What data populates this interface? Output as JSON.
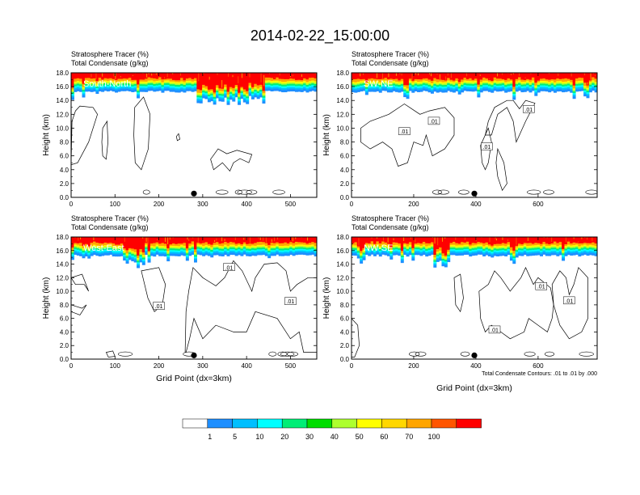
{
  "title": "2014-02-22_15:00:00",
  "colors": {
    "tracer_levels": [
      "#ffffff",
      "#1e8fff",
      "#00bfff",
      "#00ffff",
      "#00ee76",
      "#00dd00",
      "#adff2f",
      "#ffff00",
      "#ffd700",
      "#ffa500",
      "#ff5500",
      "#ff0000"
    ],
    "contour": "#000000"
  },
  "chart_data": [
    {
      "type": "heatmap",
      "panel": "South-North",
      "subtitle_line1": "Stratosphere Tracer   (%)",
      "subtitle_line2": "Total Condensate   (g/kg)",
      "ylabel": "Height (km)",
      "xlabel": "",
      "xlim": [
        0,
        560
      ],
      "ylim": [
        0,
        18
      ],
      "xticks": [
        "0",
        "100",
        "200",
        "300",
        "400",
        "500"
      ],
      "xtick_values": [
        0,
        100,
        200,
        300,
        400,
        500
      ],
      "yticks": [
        "0.0",
        "2.0",
        "4.0",
        "6.0",
        "8.0",
        "10.0",
        "12.0",
        "14.0",
        "16.0",
        "18.0"
      ],
      "tropopause_km": 15.3,
      "marker_x": 280,
      "contour_labels": []
    },
    {
      "type": "heatmap",
      "panel": "SW-NE",
      "subtitle_line1": "Stratosphere Tracer   (%)",
      "subtitle_line2": "Total Condensate   (g/kg)",
      "ylabel": "Height (km)",
      "xlabel": "",
      "xlim": [
        0,
        790
      ],
      "ylim": [
        0,
        18
      ],
      "xticks": [
        "0",
        "200",
        "400",
        "600"
      ],
      "xtick_values": [
        0,
        200,
        400,
        600
      ],
      "yticks": [
        "0.0",
        "2.0",
        "4.0",
        "6.0",
        "8.0",
        "10.0",
        "12.0",
        "14.0",
        "16.0",
        "18.0"
      ],
      "tropopause_km": 15.3,
      "marker_x": 395,
      "contour_labels": [
        {
          "text": ".01",
          "x": 170,
          "y": 9.5
        },
        {
          "text": ".01",
          "x": 265,
          "y": 11.0
        },
        {
          "text": ".01",
          "x": 435,
          "y": 7.3
        },
        {
          "text": ".01",
          "x": 570,
          "y": 12.7
        }
      ]
    },
    {
      "type": "heatmap",
      "panel": "West-East",
      "subtitle_line1": "Stratosphere Tracer   (%)",
      "subtitle_line2": "Total Condensate   (g/kg)",
      "ylabel": "Height (km)",
      "xlabel": "Grid Point (dx=3km)",
      "xlim": [
        0,
        560
      ],
      "ylim": [
        0,
        18
      ],
      "xticks": [
        "0",
        "100",
        "200",
        "300",
        "400",
        "500"
      ],
      "xtick_values": [
        0,
        100,
        200,
        300,
        400,
        500
      ],
      "yticks": [
        "0.0",
        "2.0",
        "4.0",
        "6.0",
        "8.0",
        "10.0",
        "12.0",
        "14.0",
        "16.0",
        "18.0"
      ],
      "tropopause_km": 15.3,
      "marker_x": 280,
      "contour_labels": [
        {
          "text": ".01",
          "x": 200,
          "y": 7.8
        },
        {
          "text": ".01",
          "x": 360,
          "y": 13.5
        },
        {
          "text": ".01",
          "x": 500,
          "y": 8.5
        }
      ]
    },
    {
      "type": "heatmap",
      "panel": "NW-SE",
      "subtitle_line1": "Stratosphere Tracer   (%)",
      "subtitle_line2": "Total Condensate   (g/kg)",
      "ylabel": "Height (km)",
      "xlabel": "Grid Point (dx=3km)",
      "xlim": [
        0,
        790
      ],
      "ylim": [
        0,
        18
      ],
      "xticks": [
        "0",
        "200",
        "400",
        "600"
      ],
      "xtick_values": [
        0,
        200,
        400,
        600
      ],
      "yticks": [
        "0.0",
        "2.0",
        "4.0",
        "6.0",
        "8.0",
        "10.0",
        "12.0",
        "14.0",
        "16.0",
        "18.0"
      ],
      "tropopause_km": 15.3,
      "marker_x": 395,
      "contour_labels": [
        {
          "text": ".01",
          "x": 610,
          "y": 10.7
        },
        {
          "text": ".01",
          "x": 700,
          "y": 8.6
        },
        {
          "text": ".01",
          "x": 460,
          "y": 4.3
        }
      ],
      "footnote": "Total Condensate Contours: .01 to .01 by .000"
    }
  ],
  "colorbar": {
    "labels": [
      "1",
      "5",
      "10",
      "20",
      "30",
      "40",
      "50",
      "60",
      "70",
      "100"
    ],
    "levels": [
      1,
      5,
      10,
      20,
      30,
      40,
      50,
      60,
      70,
      100
    ],
    "colors": [
      "#ffffff",
      "#1e8fff",
      "#00bfff",
      "#00ffff",
      "#00ee76",
      "#00dd00",
      "#adff2f",
      "#ffff00",
      "#ffd700",
      "#ffa500",
      "#ff5500",
      "#ff0000"
    ]
  }
}
